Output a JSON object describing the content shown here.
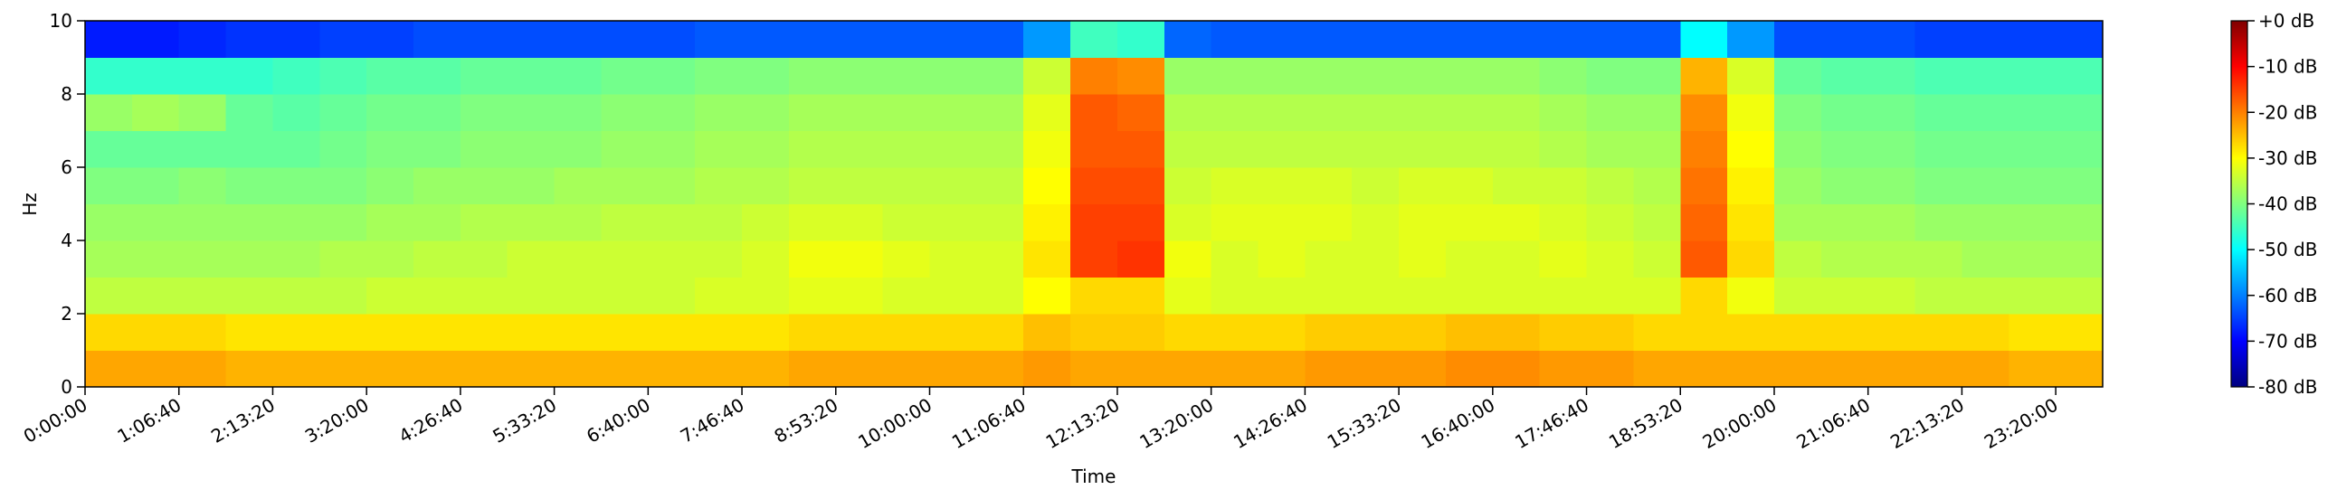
{
  "chart_data": {
    "type": "heatmap",
    "colormap": "jet",
    "x_label": "Time",
    "y_label": "Hz",
    "xlim": [
      0,
      86000
    ],
    "ylim": [
      0,
      10
    ],
    "xticks": [
      {
        "value": 0,
        "label": "0:00:00"
      },
      {
        "value": 4000,
        "label": "1:06:40"
      },
      {
        "value": 8000,
        "label": "2:13:20"
      },
      {
        "value": 12000,
        "label": "3:20:00"
      },
      {
        "value": 16000,
        "label": "4:26:40"
      },
      {
        "value": 20000,
        "label": "5:33:20"
      },
      {
        "value": 24000,
        "label": "6:40:00"
      },
      {
        "value": 28000,
        "label": "7:46:40"
      },
      {
        "value": 32000,
        "label": "8:53:20"
      },
      {
        "value": 36000,
        "label": "10:00:00"
      },
      {
        "value": 40000,
        "label": "11:06:40"
      },
      {
        "value": 44000,
        "label": "12:13:20"
      },
      {
        "value": 48000,
        "label": "13:20:00"
      },
      {
        "value": 52000,
        "label": "14:26:40"
      },
      {
        "value": 56000,
        "label": "15:33:20"
      },
      {
        "value": 60000,
        "label": "16:40:00"
      },
      {
        "value": 64000,
        "label": "17:46:40"
      },
      {
        "value": 68000,
        "label": "18:53:20"
      },
      {
        "value": 72000,
        "label": "20:00:00"
      },
      {
        "value": 76000,
        "label": "21:06:40"
      },
      {
        "value": 80000,
        "label": "22:13:20"
      },
      {
        "value": 84000,
        "label": "23:20:00"
      }
    ],
    "yticks": [
      0,
      2,
      4,
      6,
      8,
      10
    ],
    "clim": [
      -80,
      0
    ],
    "cticks": [
      {
        "value": 0,
        "label": "+0 dB"
      },
      {
        "value": -10,
        "label": "-10 dB"
      },
      {
        "value": -20,
        "label": "-20 dB"
      },
      {
        "value": -30,
        "label": "-30 dB"
      },
      {
        "value": -40,
        "label": "-40 dB"
      },
      {
        "value": -50,
        "label": "-50 dB"
      },
      {
        "value": -60,
        "label": "-60 dB"
      },
      {
        "value": -70,
        "label": "-70 dB"
      },
      {
        "value": -80,
        "label": "-80 dB"
      }
    ],
    "x": [
      1000,
      3000,
      5000,
      7000,
      9000,
      11000,
      13000,
      15000,
      17000,
      19000,
      21000,
      23000,
      25000,
      27000,
      29000,
      31000,
      33000,
      35000,
      37000,
      39000,
      41000,
      43000,
      45000,
      47000,
      49000,
      51000,
      53000,
      55000,
      57000,
      59000,
      61000,
      63000,
      65000,
      67000,
      69000,
      71000,
      73000,
      75000,
      77000,
      79000,
      81000,
      83000,
      85000
    ],
    "y": [
      0.5,
      1.5,
      2.5,
      3.5,
      4.5,
      5.5,
      6.5,
      7.5,
      8.5,
      9.5
    ],
    "z": [
      [
        -23,
        -23,
        -23,
        -24,
        -24,
        -24,
        -24,
        -24,
        -24,
        -24,
        -24,
        -24,
        -24,
        -24,
        -24,
        -23,
        -23,
        -23,
        -23,
        -23,
        -22,
        -23,
        -23,
        -23,
        -23,
        -23,
        -22,
        -22,
        -22,
        -21,
        -21,
        -22,
        -22,
        -23,
        -23,
        -23,
        -23,
        -23,
        -23,
        -23,
        -23,
        -24,
        -24
      ],
      [
        -27,
        -27,
        -27,
        -28,
        -28,
        -28,
        -28,
        -28,
        -28,
        -28,
        -28,
        -28,
        -28,
        -28,
        -28,
        -27,
        -27,
        -27,
        -27,
        -27,
        -25,
        -26,
        -26,
        -27,
        -27,
        -27,
        -26,
        -26,
        -26,
        -25,
        -25,
        -26,
        -26,
        -27,
        -27,
        -27,
        -27,
        -27,
        -27,
        -27,
        -27,
        -28,
        -28
      ],
      [
        -35,
        -35,
        -35,
        -35,
        -35,
        -35,
        -34,
        -34,
        -34,
        -34,
        -34,
        -34,
        -34,
        -33,
        -33,
        -32,
        -32,
        -33,
        -33,
        -33,
        -30,
        -27,
        -27,
        -32,
        -33,
        -33,
        -33,
        -33,
        -33,
        -33,
        -33,
        -33,
        -33,
        -33,
        -27,
        -31,
        -34,
        -34,
        -34,
        -35,
        -35,
        -35,
        -35
      ],
      [
        -37,
        -37,
        -37,
        -37,
        -37,
        -36,
        -36,
        -35,
        -35,
        -34,
        -34,
        -34,
        -34,
        -34,
        -33,
        -31,
        -31,
        -32,
        -33,
        -33,
        -28,
        -15,
        -14,
        -31,
        -33,
        -32,
        -33,
        -33,
        -32,
        -33,
        -33,
        -32,
        -33,
        -34,
        -17,
        -27,
        -35,
        -36,
        -36,
        -36,
        -37,
        -37,
        -37
      ],
      [
        -38,
        -38,
        -38,
        -38,
        -38,
        -38,
        -37,
        -37,
        -36,
        -36,
        -36,
        -35,
        -35,
        -35,
        -34,
        -33,
        -33,
        -34,
        -34,
        -34,
        -29,
        -15,
        -15,
        -33,
        -32,
        -32,
        -32,
        -33,
        -32,
        -32,
        -32,
        -33,
        -34,
        -35,
        -18,
        -28,
        -37,
        -37,
        -37,
        -38,
        -38,
        -38,
        -38
      ],
      [
        -40,
        -40,
        -39,
        -40,
        -40,
        -40,
        -39,
        -38,
        -38,
        -38,
        -37,
        -37,
        -37,
        -36,
        -36,
        -35,
        -35,
        -35,
        -35,
        -35,
        -30,
        -16,
        -16,
        -34,
        -33,
        -33,
        -33,
        -34,
        -33,
        -33,
        -34,
        -34,
        -35,
        -36,
        -19,
        -29,
        -38,
        -39,
        -39,
        -40,
        -40,
        -40,
        -40
      ],
      [
        -42,
        -42,
        -42,
        -42,
        -42,
        -41,
        -40,
        -40,
        -39,
        -39,
        -39,
        -38,
        -38,
        -37,
        -37,
        -36,
        -36,
        -36,
        -36,
        -36,
        -31,
        -17,
        -17,
        -35,
        -35,
        -35,
        -35,
        -35,
        -35,
        -35,
        -35,
        -36,
        -37,
        -37,
        -20,
        -30,
        -39,
        -40,
        -40,
        -41,
        -41,
        -41,
        -41
      ],
      [
        -38,
        -37,
        -38,
        -42,
        -43,
        -42,
        -41,
        -41,
        -40,
        -40,
        -40,
        -39,
        -39,
        -38,
        -38,
        -37,
        -37,
        -37,
        -37,
        -37,
        -32,
        -17,
        -18,
        -36,
        -36,
        -36,
        -36,
        -36,
        -36,
        -36,
        -36,
        -37,
        -38,
        -38,
        -21,
        -31,
        -40,
        -41,
        -41,
        -42,
        -42,
        -42,
        -42
      ],
      [
        -46,
        -46,
        -46,
        -46,
        -45,
        -44,
        -43,
        -43,
        -42,
        -42,
        -42,
        -41,
        -41,
        -40,
        -40,
        -39,
        -39,
        -39,
        -39,
        -39,
        -34,
        -20,
        -21,
        -38,
        -38,
        -38,
        -38,
        -38,
        -38,
        -38,
        -38,
        -39,
        -40,
        -40,
        -24,
        -33,
        -42,
        -43,
        -43,
        -44,
        -44,
        -44,
        -44
      ],
      [
        -68,
        -68,
        -67,
        -66,
        -66,
        -65,
        -65,
        -64,
        -64,
        -64,
        -64,
        -64,
        -64,
        -63,
        -63,
        -63,
        -63,
        -63,
        -63,
        -63,
        -58,
        -45,
        -46,
        -62,
        -63,
        -63,
        -63,
        -63,
        -63,
        -63,
        -63,
        -63,
        -63,
        -63,
        -50,
        -58,
        -64,
        -64,
        -64,
        -65,
        -65,
        -65,
        -65
      ]
    ]
  }
}
